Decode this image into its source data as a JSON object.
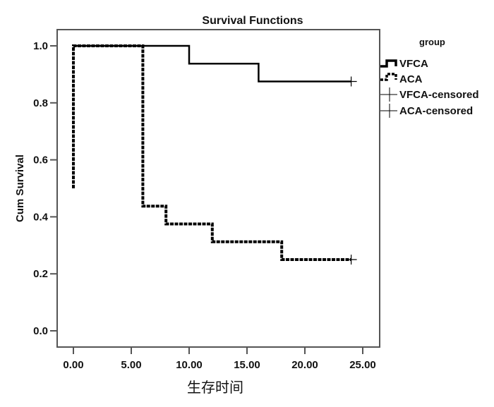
{
  "chart_data": {
    "type": "line",
    "subtype": "kaplan-meier-step",
    "title": "Survival Functions",
    "xlabel": "生存时间",
    "ylabel": "Cum Survival",
    "xlim": [
      -1.5,
      26.5
    ],
    "ylim": [
      -0.06,
      1.07
    ],
    "xticks": [
      0,
      5,
      10,
      15,
      20,
      25
    ],
    "xtick_labels": [
      "0.00",
      "5.00",
      "10.00",
      "15.00",
      "20.00",
      "25.00"
    ],
    "yticks": [
      0.0,
      0.2,
      0.4,
      0.6,
      0.8,
      1.0
    ],
    "ytick_labels": [
      "0.0",
      "0.2",
      "0.4",
      "0.6",
      "0.8",
      "1.0"
    ],
    "grid": false,
    "legend": {
      "title": "group",
      "placement": "right",
      "entries": [
        {
          "label": "VFCA",
          "style": "solid-step"
        },
        {
          "label": "ACA",
          "style": "dashed-step"
        },
        {
          "label": "VFCA-censored",
          "style": "cross"
        },
        {
          "label": "ACA-censored",
          "style": "cross"
        }
      ]
    },
    "series": [
      {
        "name": "VFCA",
        "line_style": "solid",
        "color": "#000000",
        "steps": [
          {
            "x": 0,
            "y": 1.0
          },
          {
            "x": 10,
            "y": 0.9375
          },
          {
            "x": 16,
            "y": 0.875
          },
          {
            "x": 24,
            "y": 0.875
          }
        ],
        "censored": [
          {
            "x": 24,
            "y": 0.875
          }
        ]
      },
      {
        "name": "ACA",
        "line_style": "dashed",
        "color": "#000000",
        "start_y": 0.5,
        "steps": [
          {
            "x": 0,
            "y": 1.0
          },
          {
            "x": 6,
            "y": 0.4375
          },
          {
            "x": 8,
            "y": 0.375
          },
          {
            "x": 12,
            "y": 0.3125
          },
          {
            "x": 18,
            "y": 0.25
          },
          {
            "x": 24,
            "y": 0.25
          }
        ],
        "censored": [
          {
            "x": 24,
            "y": 0.25
          }
        ]
      }
    ]
  }
}
